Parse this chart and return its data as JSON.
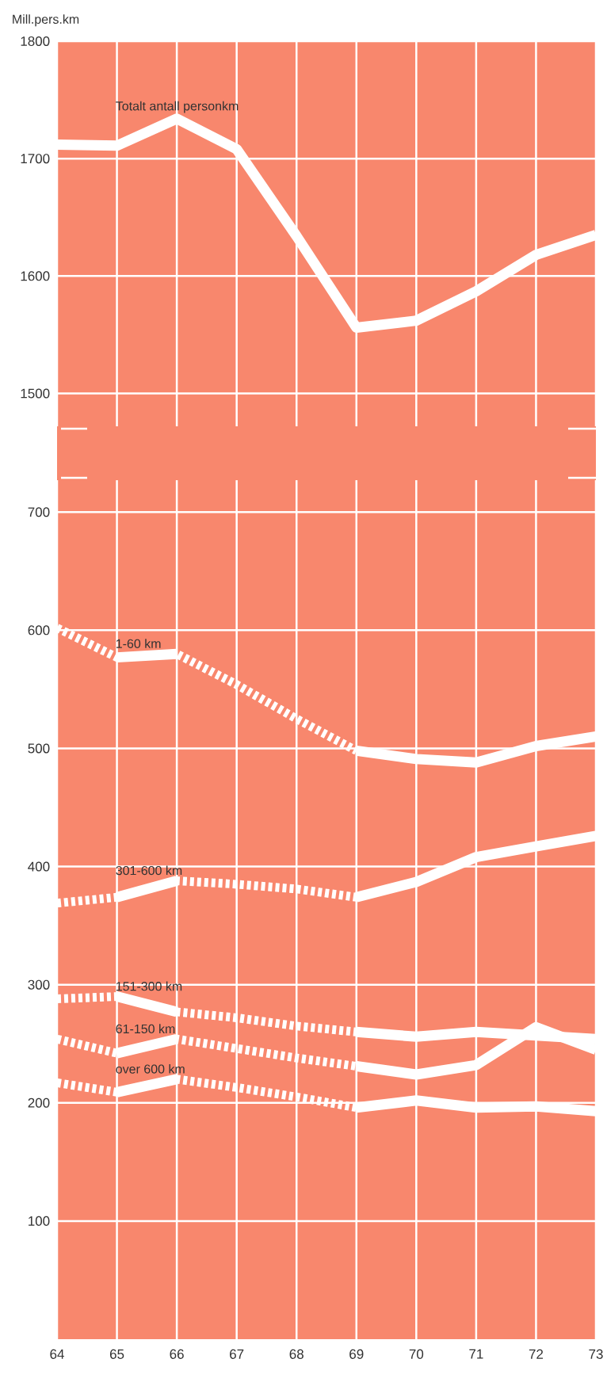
{
  "chart_data": [
    {
      "type": "line",
      "ylabel": "Mill.pers.km",
      "x": [
        64,
        65,
        66,
        67,
        68,
        69,
        70,
        71,
        72,
        73
      ],
      "xlim": [
        64,
        73
      ],
      "xticks": [
        64,
        65,
        66,
        67,
        68,
        69,
        70,
        71,
        72,
        73
      ],
      "ylim": [
        1472,
        1800
      ],
      "yticks": [
        1500,
        1600,
        1700,
        1800
      ],
      "grid": true,
      "tick_labels": "y",
      "series": [
        {
          "name": "Totalt antall personkm",
          "color": "#ffffff",
          "line_style": "solid",
          "values": [
            1712,
            1711,
            1734,
            1708,
            1634,
            1556,
            1562,
            1587,
            1618,
            1635
          ]
        }
      ]
    },
    {
      "type": "line",
      "x": [
        64,
        65,
        66,
        67,
        68,
        69,
        70,
        71,
        72,
        73
      ],
      "xlim": [
        64,
        73
      ],
      "xticks": [
        64,
        65,
        66,
        67,
        68,
        69,
        70,
        71,
        72,
        73
      ],
      "ylim": [
        0,
        727
      ],
      "yticks": [
        100,
        200,
        300,
        400,
        500,
        600,
        700
      ],
      "grid": true,
      "series": [
        {
          "color": "#ffffff",
          "line_style": "dashed",
          "values": [
            602,
            577,
            580,
            554,
            525,
            498,
            null,
            null,
            null,
            null
          ]
        },
        {
          "name": "1-60 km",
          "color": "#ffffff",
          "line_style": "solid",
          "values": [
            null,
            577,
            580,
            null,
            null,
            498,
            491,
            488,
            502,
            510
          ]
        },
        {
          "color": "#ffffff",
          "line_style": "dashed",
          "values": [
            369,
            374,
            388,
            385,
            381,
            374,
            null,
            null,
            null,
            null
          ]
        },
        {
          "name": "301-600 km",
          "color": "#ffffff",
          "line_style": "solid",
          "values": [
            null,
            374,
            388,
            null,
            null,
            374,
            387,
            408,
            417,
            426
          ]
        },
        {
          "color": "#ffffff",
          "line_style": "dashed",
          "values": [
            288,
            290,
            277,
            272,
            265,
            260,
            null,
            null,
            null,
            null
          ]
        },
        {
          "name": "151-300 km",
          "color": "#ffffff",
          "line_style": "solid",
          "values": [
            null,
            290,
            277,
            null,
            null,
            260,
            256,
            260,
            257,
            254
          ]
        },
        {
          "color": "#ffffff",
          "line_style": "dashed",
          "values": [
            254,
            242,
            254,
            246,
            238,
            231,
            null,
            null,
            null,
            null
          ]
        },
        {
          "name": "61-150 km",
          "color": "#ffffff",
          "line_style": "solid",
          "values": [
            null,
            242,
            254,
            null,
            null,
            231,
            224,
            232,
            264,
            245
          ]
        },
        {
          "color": "#ffffff",
          "line_style": "dashed",
          "values": [
            217,
            209,
            220,
            213,
            205,
            196,
            null,
            null,
            null,
            null
          ]
        },
        {
          "name": "over 600 km",
          "color": "#ffffff",
          "line_style": "solid",
          "values": [
            null,
            209,
            220,
            null,
            null,
            196,
            202,
            196,
            197,
            193
          ]
        }
      ]
    }
  ]
}
